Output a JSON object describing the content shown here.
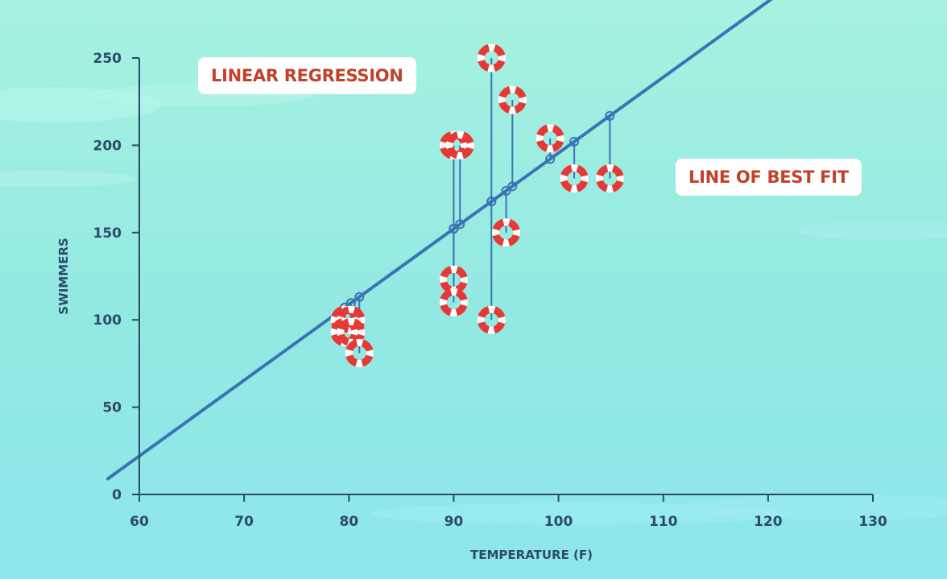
{
  "chart_data": {
    "type": "scatter",
    "title": "LINEAR REGRESSION",
    "annotations": [
      "LINE OF BEST FIT"
    ],
    "xlabel": "TEMPERATURE (F)",
    "ylabel": "SWIMMERS",
    "xlim": [
      60,
      130
    ],
    "ylim": [
      0,
      250
    ],
    "xticks": [
      60,
      70,
      80,
      90,
      100,
      110,
      120,
      130
    ],
    "yticks": [
      0,
      50,
      100,
      150,
      200,
      250
    ],
    "grid": false,
    "points": [
      {
        "x": 79.6,
        "y": 100
      },
      {
        "x": 80.2,
        "y": 100
      },
      {
        "x": 79.6,
        "y": 93
      },
      {
        "x": 80.2,
        "y": 93
      },
      {
        "x": 81.0,
        "y": 81
      },
      {
        "x": 90.0,
        "y": 200
      },
      {
        "x": 90.6,
        "y": 200
      },
      {
        "x": 90.0,
        "y": 123
      },
      {
        "x": 90.0,
        "y": 110
      },
      {
        "x": 93.6,
        "y": 250
      },
      {
        "x": 93.6,
        "y": 100
      },
      {
        "x": 95.0,
        "y": 150
      },
      {
        "x": 95.6,
        "y": 226
      },
      {
        "x": 99.2,
        "y": 204
      },
      {
        "x": 101.5,
        "y": 181
      },
      {
        "x": 104.9,
        "y": 181
      }
    ],
    "best_fit": {
      "slope": 4.34,
      "intercept": -238.4
    },
    "colors": {
      "line": "#3a74b5",
      "residual": "#3a74b5",
      "marker_red": "#e53935",
      "marker_white": "#ffffff",
      "axis": "#2d4a6b"
    }
  }
}
